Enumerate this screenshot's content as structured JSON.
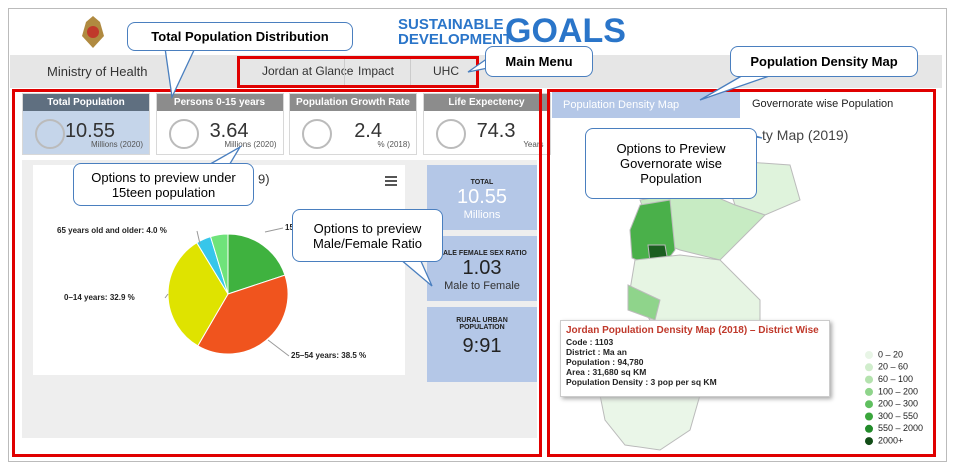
{
  "header": {
    "ministry": "Ministry of Health",
    "menu": [
      "Jordan at Glance",
      "Impact",
      "UHC"
    ],
    "sdg": [
      "SUSTAINABLE",
      "DEVELOPMENT",
      "GOALS"
    ]
  },
  "kpis": [
    {
      "title": "Total Population",
      "value": "10.55",
      "unit": "Millions (2020)"
    },
    {
      "title": "Persons 0-15 years",
      "value": "3.64",
      "unit": "Millions (2020)"
    },
    {
      "title": "Population Growth Rate",
      "value": "2.4",
      "unit": "% (2018)"
    },
    {
      "title": "Life Expectency",
      "value": "74.3",
      "unit": "Years"
    }
  ],
  "stats": [
    {
      "title": "TOTAL",
      "value": "10.55",
      "unit": "Millions"
    },
    {
      "title": "MALE FEMALE SEX RATIO",
      "value": "1.03",
      "unit": "Male to Female"
    },
    {
      "title": "RURAL URBAN POPULATION",
      "value": "9:91",
      "unit": null
    }
  ],
  "chart_data": {
    "type": "pie",
    "title": "9)",
    "categories": [
      "15",
      "25–54 years: 38.5 %",
      "0–14 years: 32.9 %",
      "65 years old and older: 4.0 %",
      null
    ],
    "values": [
      19.9,
      38.5,
      32.9,
      4.0,
      4.7
    ],
    "colors": [
      "#3fb23f",
      "#f0541e",
      "#dfe300",
      "#37c6ea",
      "#6fe37a"
    ]
  },
  "map": {
    "tabs": [
      "Population Density Map",
      "Governorate wise Population"
    ],
    "title": "ty Map (2019)",
    "tooltip": {
      "title": "Jordan Population Density Map (2018) – District Wise",
      "lines": [
        "Code : 1103",
        "District : Ma an",
        "Population : 94,780",
        "Area : 31,680 sq KM",
        "Population Density : 3 pop per sq KM"
      ]
    },
    "legend": [
      "0 – 20",
      "20 – 60",
      "60 – 100",
      "100 – 200",
      "200 – 300",
      "300 – 550",
      "550 – 2000",
      "2000+"
    ]
  },
  "callouts": [
    "Total Population Distribution",
    "Main Menu",
    "Population Density Map",
    "Options to preview under 15teen population",
    "Options to preview Male/Female Ratio",
    "Options to Preview Governorate wise Population"
  ]
}
